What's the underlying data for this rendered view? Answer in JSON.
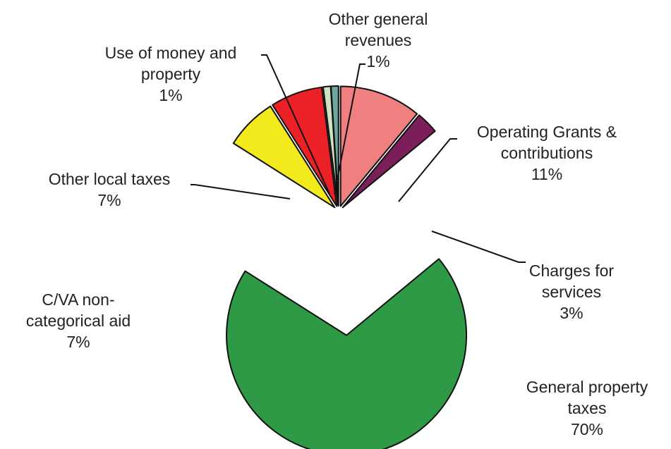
{
  "chart_data": {
    "type": "pie",
    "title": "",
    "slices": [
      {
        "label_lines": [
          "Operating Grants &",
          "contributions"
        ],
        "value": 11,
        "value_label": "11%",
        "color": "#f08080"
      },
      {
        "label_lines": [
          "Charges for",
          "services"
        ],
        "value": 3,
        "value_label": "3%",
        "color": "#7b1e5a"
      },
      {
        "label_lines": [
          "General property",
          "taxes"
        ],
        "value": 70,
        "value_label": "70%",
        "color": "#2e9a45"
      },
      {
        "label_lines": [
          "C/VA non-",
          "categorical aid"
        ],
        "value": 7,
        "value_label": "7%",
        "color": "#f2ea1c"
      },
      {
        "label_lines": [
          "Other local taxes"
        ],
        "value": 7,
        "value_label": "7%",
        "color": "#ec2027"
      },
      {
        "label_lines": [
          "Use of money and",
          "property"
        ],
        "value": 1,
        "value_label": "1%",
        "color": "#cfe3c4"
      },
      {
        "label_lines": [
          "Other general",
          "revenues"
        ],
        "value": 1,
        "value_label": "1%",
        "color": "#6fa6a0"
      }
    ],
    "legend": "none",
    "exploded": true
  }
}
